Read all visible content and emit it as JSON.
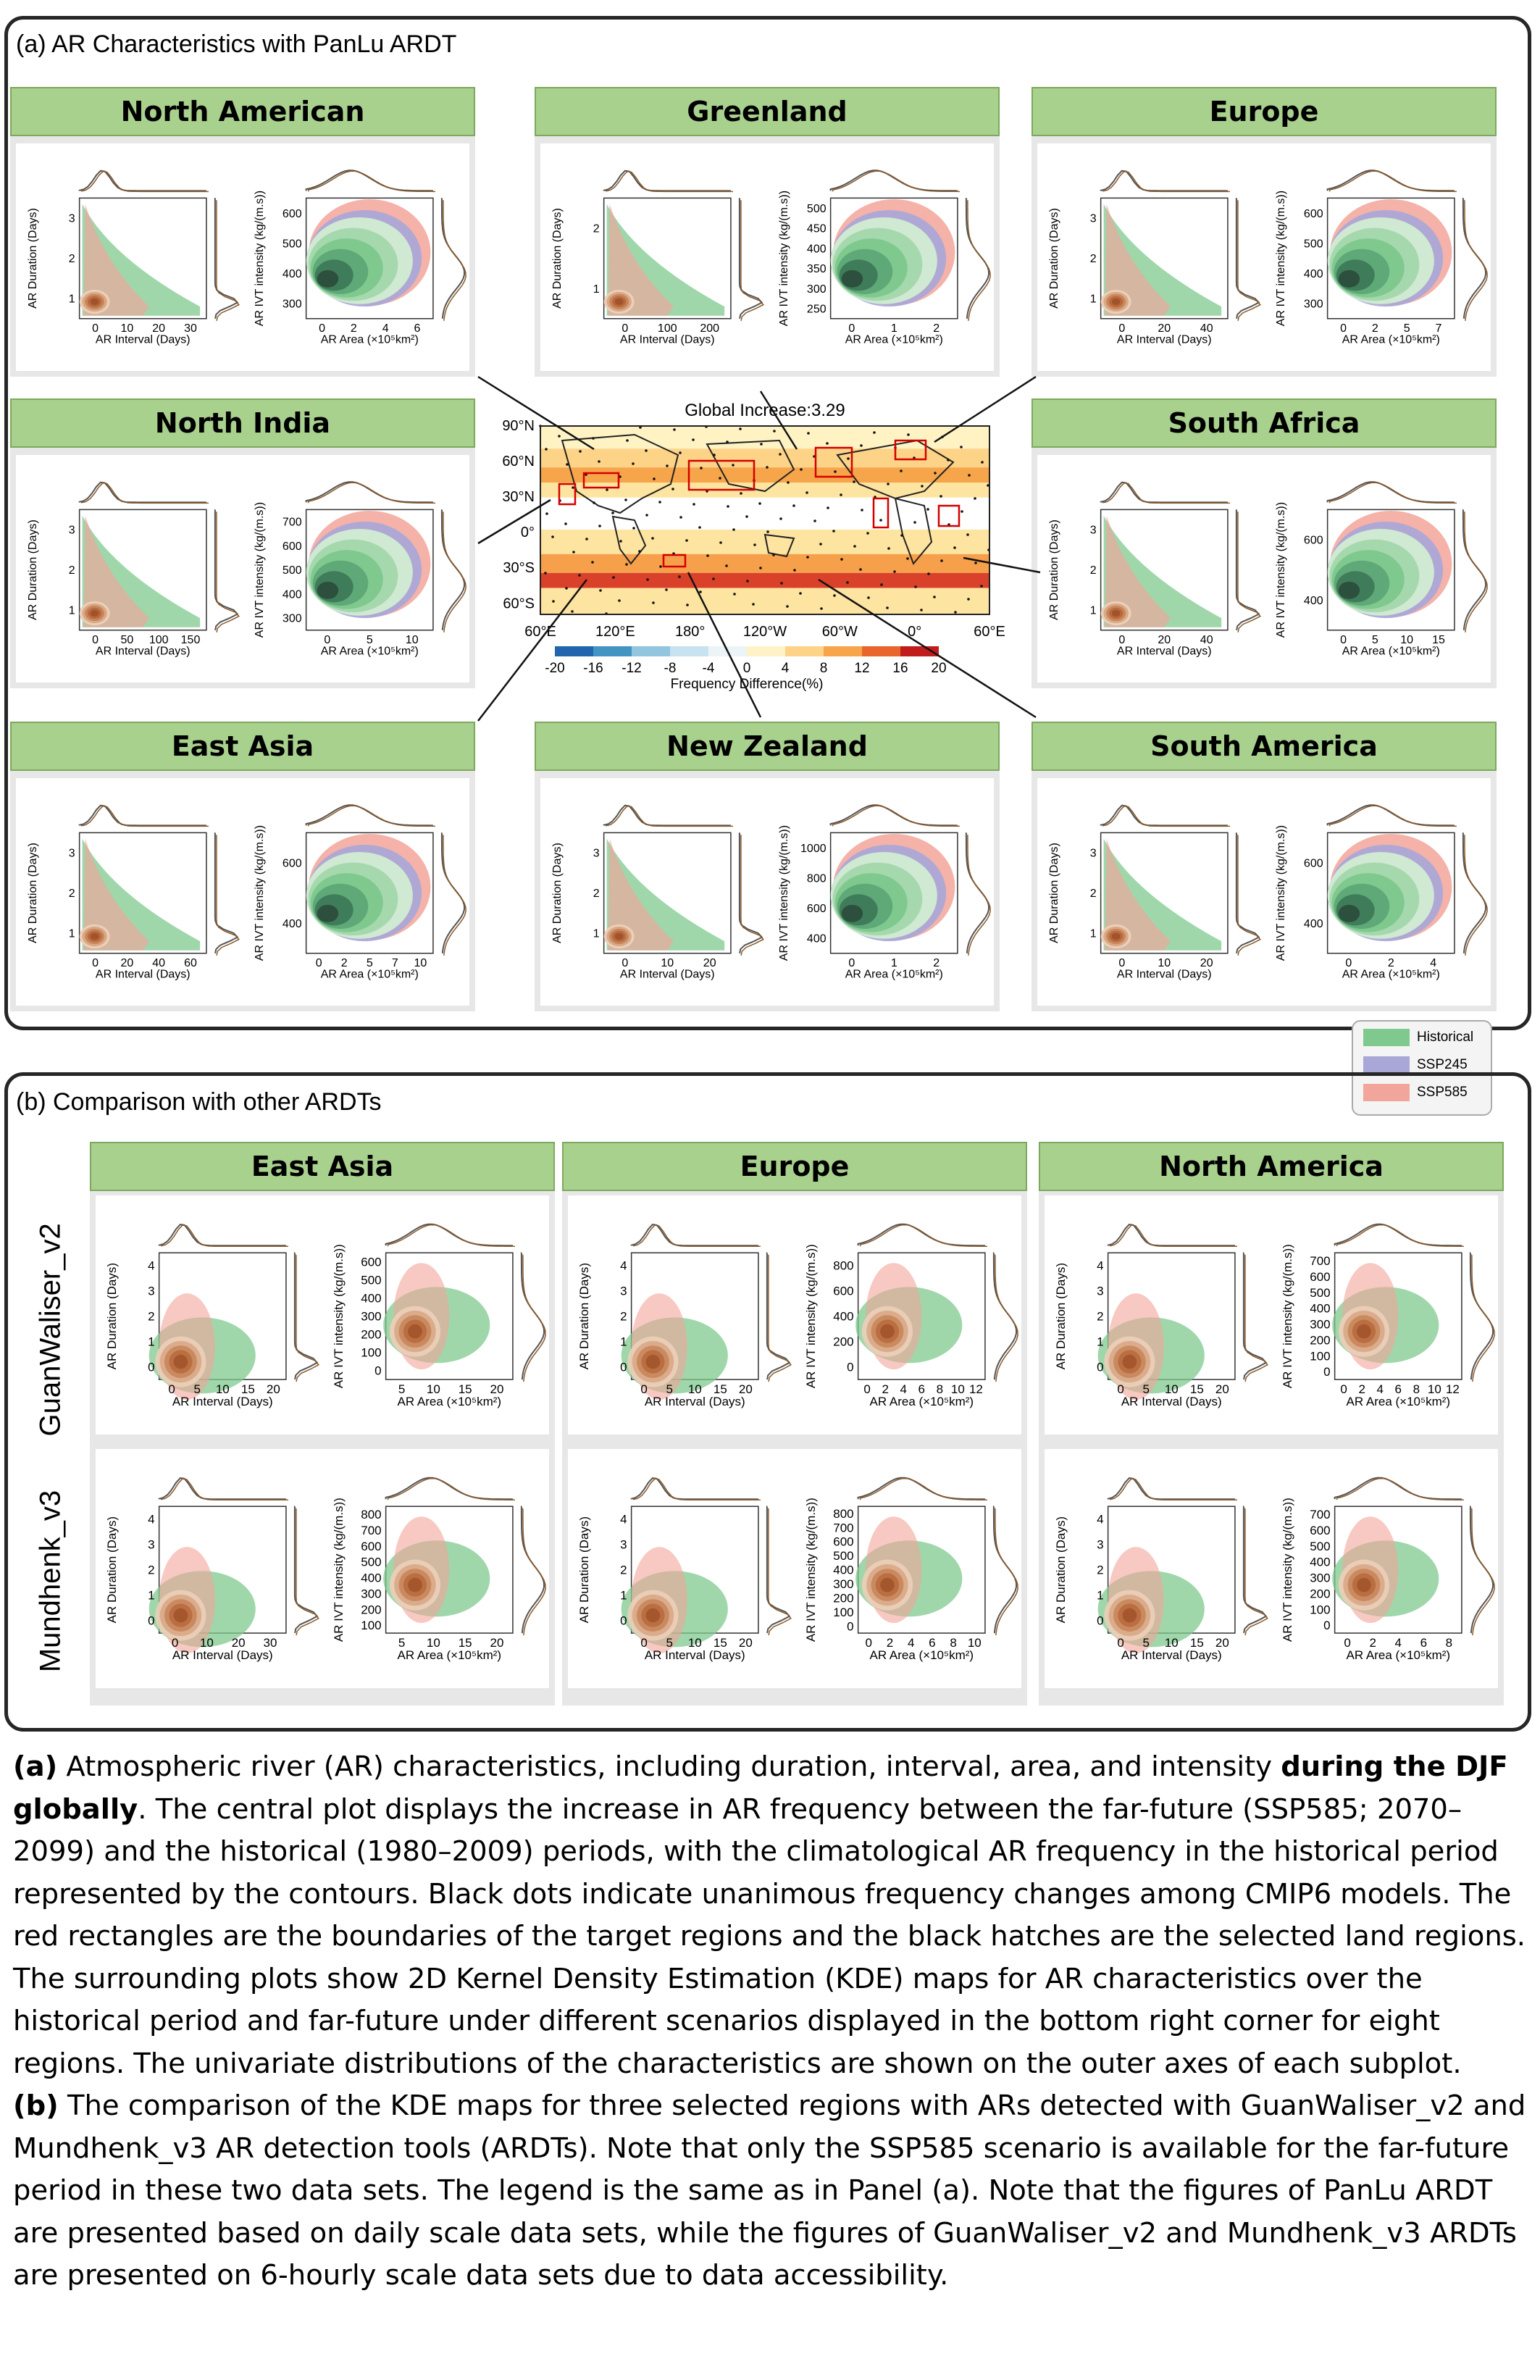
{
  "panel_a": {
    "title": "(a) AR Characteristics with PanLu ARDT",
    "regions": [
      {
        "name": "North American",
        "col": 0,
        "row": 0,
        "left": {
          "yticks": [
            "1",
            "2",
            "3"
          ],
          "xticks": [
            "0",
            "10",
            "20",
            "30"
          ]
        },
        "right": {
          "yticks": [
            "300",
            "400",
            "500",
            "600"
          ],
          "xticks": [
            "0",
            "2",
            "4",
            "6"
          ]
        }
      },
      {
        "name": "Greenland",
        "col": 1,
        "row": 0,
        "left": {
          "yticks": [
            "1",
            "2"
          ],
          "xticks": [
            "0",
            "100",
            "200"
          ]
        },
        "right": {
          "yticks": [
            "250",
            "300",
            "350",
            "400",
            "450",
            "500"
          ],
          "xticks": [
            "0",
            "1",
            "2"
          ]
        }
      },
      {
        "name": "Europe",
        "col": 2,
        "row": 0,
        "left": {
          "yticks": [
            "1",
            "2",
            "3"
          ],
          "xticks": [
            "0",
            "20",
            "40"
          ]
        },
        "right": {
          "yticks": [
            "300",
            "400",
            "500",
            "600"
          ],
          "xticks": [
            "0",
            "2",
            "5",
            "7"
          ]
        }
      },
      {
        "name": "North India",
        "col": 0,
        "row": 1,
        "left": {
          "yticks": [
            "1",
            "2",
            "3"
          ],
          "xticks": [
            "0",
            "50",
            "100",
            "150"
          ]
        },
        "right": {
          "yticks": [
            "300",
            "400",
            "500",
            "600",
            "700"
          ],
          "xticks": [
            "0",
            "5",
            "10"
          ]
        }
      },
      {
        "name": "South Africa",
        "col": 2,
        "row": 1,
        "left": {
          "yticks": [
            "1",
            "2",
            "3"
          ],
          "xticks": [
            "0",
            "20",
            "40"
          ]
        },
        "right": {
          "yticks": [
            "400",
            "600"
          ],
          "xticks": [
            "0",
            "5",
            "10",
            "15"
          ]
        }
      },
      {
        "name": "East Asia",
        "col": 0,
        "row": 2,
        "left": {
          "yticks": [
            "1",
            "2",
            "3"
          ],
          "xticks": [
            "0",
            "20",
            "40",
            "60"
          ]
        },
        "right": {
          "yticks": [
            "400",
            "600"
          ],
          "xticks": [
            "0",
            "2",
            "5",
            "7",
            "10"
          ]
        }
      },
      {
        "name": "New Zealand",
        "col": 1,
        "row": 2,
        "left": {
          "yticks": [
            "1",
            "2",
            "3"
          ],
          "xticks": [
            "0",
            "10",
            "20"
          ]
        },
        "right": {
          "yticks": [
            "400",
            "600",
            "800",
            "1000"
          ],
          "xticks": [
            "0",
            "1",
            "2"
          ]
        }
      },
      {
        "name": "South America",
        "col": 2,
        "row": 2,
        "left": {
          "yticks": [
            "1",
            "2",
            "3"
          ],
          "xticks": [
            "0",
            "10",
            "20"
          ]
        },
        "right": {
          "yticks": [
            "400",
            "600"
          ],
          "xticks": [
            "0",
            "2",
            "4"
          ]
        }
      }
    ],
    "axis_labels": {
      "duration": "AR Duration (Days)",
      "interval": "AR Interval (Days)",
      "intensity": "AR IVT intensity (kg/(m.s))",
      "area": "AR Area (×10⁵km²)"
    },
    "map": {
      "global_increase": "Global Increase:3.29",
      "lat_labels": [
        "90°N",
        "60°N",
        "30°N",
        "0°",
        "30°S",
        "60°S"
      ],
      "lon_labels": [
        "60°E",
        "120°E",
        "180°",
        "120°W",
        "60°W",
        "0°",
        "60°E"
      ],
      "colorbar_ticks": [
        "-20",
        "-16",
        "-12",
        "-8",
        "-4",
        "0",
        "4",
        "8",
        "12",
        "16",
        "20"
      ],
      "colorbar_label": "Frequency Difference(%)"
    },
    "legend": [
      {
        "label": "Historical",
        "color": "#7fc98f"
      },
      {
        "label": "SSP245",
        "color": "#a9a6d8"
      },
      {
        "label": "SSP585",
        "color": "#f2a59a"
      }
    ]
  },
  "panel_b": {
    "title": "(b) Comparison with other ARDTs",
    "regions": [
      "East Asia",
      "Europe",
      "North America"
    ],
    "rows": [
      "GuanWaliser_v2",
      "Mundhenk_v3"
    ],
    "plots": [
      [
        {
          "left": {
            "yticks": [
              "0",
              "1",
              "2",
              "3",
              "4"
            ],
            "xticks": [
              "0",
              "5",
              "10",
              "15",
              "20"
            ]
          },
          "right": {
            "yticks": [
              "0",
              "100",
              "200",
              "300",
              "400",
              "500",
              "600"
            ],
            "xticks": [
              "5",
              "10",
              "15",
              "20"
            ]
          }
        },
        {
          "left": {
            "yticks": [
              "0",
              "1",
              "2",
              "3",
              "4"
            ],
            "xticks": [
              "0",
              "5",
              "10",
              "15",
              "20"
            ]
          },
          "right": {
            "yticks": [
              "0",
              "200",
              "400",
              "600",
              "800"
            ],
            "xticks": [
              "0",
              "2",
              "4",
              "6",
              "8",
              "10",
              "12"
            ]
          }
        },
        {
          "left": {
            "yticks": [
              "0",
              "1",
              "2",
              "3",
              "4"
            ],
            "xticks": [
              "0",
              "5",
              "10",
              "15",
              "20"
            ]
          },
          "right": {
            "yticks": [
              "0",
              "100",
              "200",
              "300",
              "400",
              "500",
              "600",
              "700"
            ],
            "xticks": [
              "0",
              "2",
              "4",
              "6",
              "8",
              "10",
              "12"
            ]
          }
        }
      ],
      [
        {
          "left": {
            "yticks": [
              "0",
              "1",
              "2",
              "3",
              "4"
            ],
            "xticks": [
              "0",
              "10",
              "20",
              "30"
            ]
          },
          "right": {
            "yticks": [
              "100",
              "200",
              "300",
              "400",
              "500",
              "600",
              "700",
              "800"
            ],
            "xticks": [
              "5",
              "10",
              "15",
              "20"
            ]
          }
        },
        {
          "left": {
            "yticks": [
              "0",
              "1",
              "2",
              "3",
              "4"
            ],
            "xticks": [
              "0",
              "5",
              "10",
              "15",
              "20"
            ]
          },
          "right": {
            "yticks": [
              "0",
              "100",
              "200",
              "300",
              "400",
              "500",
              "600",
              "700",
              "800"
            ],
            "xticks": [
              "0",
              "2",
              "4",
              "6",
              "8",
              "10"
            ]
          }
        },
        {
          "left": {
            "yticks": [
              "0",
              "1",
              "2",
              "3",
              "4"
            ],
            "xticks": [
              "0",
              "5",
              "10",
              "15",
              "20"
            ]
          },
          "right": {
            "yticks": [
              "0",
              "100",
              "200",
              "300",
              "400",
              "500",
              "600",
              "700"
            ],
            "xticks": [
              "0",
              "2",
              "4",
              "6",
              "8"
            ]
          }
        }
      ]
    ]
  },
  "caption": {
    "a_label": "(a)",
    "a_text_1": " Atmospheric river (AR) characteristics, including duration, interval, area, and intensity ",
    "a_bold": "during the DJF globally",
    "a_text_2": ". The central plot displays the increase in AR frequency between the far-future (SSP585; 2070–2099) and the historical (1980–2009) periods, with the climatological AR frequency in the historical period represented by the contours. Black dots indicate unanimous frequency changes among CMIP6 models. The red rectangles are the boundaries of the target regions and the black hatches are the selected land regions. The surrounding plots show 2D Kernel Density Estimation (KDE) maps for AR characteristics over the historical period and far-future under different scenarios displayed in the bottom right corner for eight regions. The univariate distributions of the characteristics are shown on the outer axes of each subplot.",
    "b_label": "(b)",
    "b_text": " The comparison of the KDE maps for three selected regions with ARs detected with GuanWaliser_v2 and Mundhenk_v3 AR detection tools (ARDTs). Note that only the SSP585 scenario is available for the far-future period in these two data sets. The legend is the same as in Panel (a). Note that the figures of PanLu ARDT are presented based on daily scale data sets, while the figures of GuanWaliser_v2 and Mundhenk_v3 ARDTs are presented on 6-hourly scale data sets due to data accessibility."
  }
}
